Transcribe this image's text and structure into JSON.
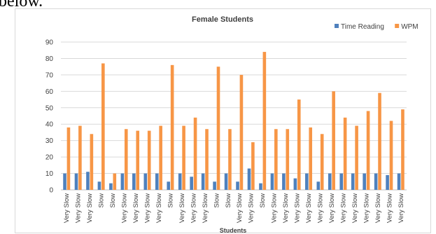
{
  "page_caption_fragment": "below.",
  "chart_data": {
    "type": "bar",
    "title": "Female Students",
    "xlabel": "Students",
    "ylabel": "",
    "ylim": [
      0,
      90
    ],
    "yticks": [
      0,
      10,
      20,
      30,
      40,
      50,
      60,
      70,
      80,
      90
    ],
    "grid": true,
    "legend_position": "top-right",
    "categories": [
      "Very Slow",
      "Very Slow",
      "Very Slow",
      "Slow",
      "Slow",
      "Very Slow",
      "Very Slow",
      "Very Slow",
      "Very Slow",
      "Slow",
      "Very Slow",
      "Very Slow",
      "Very Slow",
      "Slow",
      "Slow",
      "Very Slow",
      "Very Slow",
      "Slow",
      "Very Slow",
      "Very Slow",
      "Very Slow",
      "Very Slow",
      "Very Slow",
      "Very Slow",
      "Very Slow",
      "Very Slow",
      "Very Slow",
      "Very Slow",
      "Very Slow",
      "Very Slow"
    ],
    "series": [
      {
        "name": "Time Reading",
        "color": "#4f81bd",
        "values": [
          10,
          10,
          11,
          5,
          4,
          10,
          10,
          10,
          10,
          5,
          10,
          8,
          10,
          5,
          10,
          5,
          13,
          4,
          10,
          10,
          7,
          10,
          5,
          10,
          10,
          10,
          10,
          10,
          9,
          10
        ]
      },
      {
        "name": "WPM",
        "color": "#f79646",
        "values": [
          38,
          39,
          34,
          77,
          10,
          37,
          36,
          36,
          39,
          76,
          39,
          44,
          37,
          75,
          37,
          70,
          29,
          84,
          37,
          37,
          55,
          38,
          34,
          60,
          44,
          39,
          48,
          59,
          42,
          49
        ]
      }
    ]
  }
}
